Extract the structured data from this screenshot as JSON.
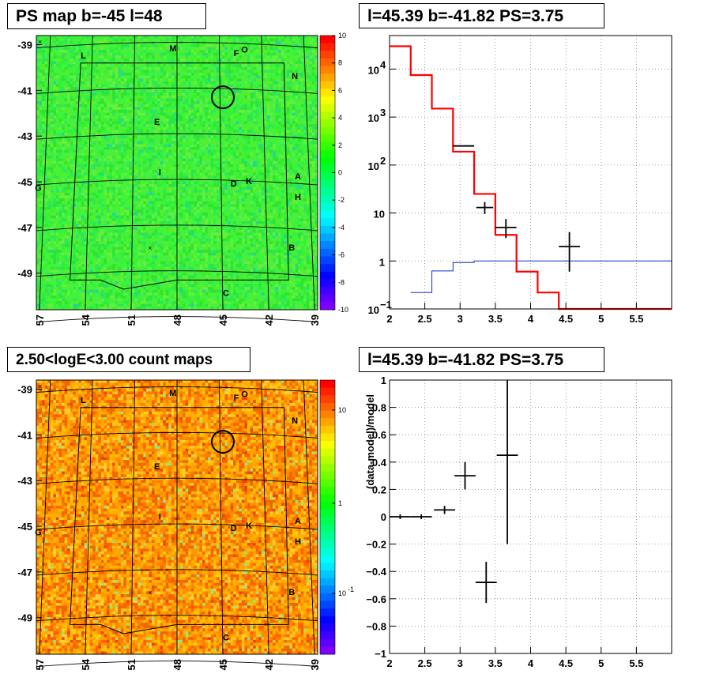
{
  "panels": {
    "tl_title": "PS map b=-45 l=48",
    "tr_title": "l=45.39 b=-41.82 PS=3.75",
    "bl_title": "2.50<logE<3.00 count maps",
    "br_title": "l=45.39 b=-41.82 PS=3.75"
  },
  "map_axes": {
    "x_ticks": [
      "57",
      "54",
      "51",
      "48",
      "45",
      "42",
      "39"
    ],
    "y_ticks": [
      "-39",
      "-41",
      "-43",
      "-45",
      "-47",
      "-49"
    ],
    "labels": [
      {
        "t": "M",
        "l": 48.5,
        "b": -39.3
      },
      {
        "t": "L",
        "l": 54.3,
        "b": -39.6
      },
      {
        "t": "F",
        "l": 44.3,
        "b": -39.5
      },
      {
        "t": "O",
        "l": 43.8,
        "b": -39.35
      },
      {
        "t": "N",
        "l": 40.5,
        "b": -40.5
      },
      {
        "t": "E",
        "l": 49.5,
        "b": -42.5
      },
      {
        "t": "I",
        "l": 49.2,
        "b": -44.7
      },
      {
        "t": "D",
        "l": 44.5,
        "b": -45.2
      },
      {
        "t": "K",
        "l": 43.5,
        "b": -45.1
      },
      {
        "t": "A",
        "l": 40.3,
        "b": -44.9
      },
      {
        "t": "G",
        "l": 57.3,
        "b": -45.4
      },
      {
        "t": "H",
        "l": 40.3,
        "b": -45.8
      },
      {
        "t": "B",
        "l": 40.7,
        "b": -48.0
      },
      {
        "t": "C",
        "l": 45.0,
        "b": -50.0
      }
    ]
  },
  "colorbar_tl": {
    "ticks": [
      "10",
      "8",
      "6",
      "4",
      "2",
      "0",
      "-2",
      "-4",
      "-6",
      "-8",
      "-10"
    ]
  },
  "colorbar_bl": {
    "ticks": [
      "10",
      "1",
      "10",
      "-1"
    ]
  },
  "chart_data": [
    {
      "type": "heatmap",
      "title": "PS map b=-45 l=48",
      "x_ticks": [
        57,
        54,
        51,
        48,
        45,
        42,
        39
      ],
      "y_ticks": [
        -39,
        -41,
        -43,
        -45,
        -47,
        -49
      ],
      "zlim": [
        -10,
        10
      ],
      "circle": {
        "l": 45.0,
        "b": -41.3
      }
    },
    {
      "type": "line",
      "title": "l=45.39 b=-41.82 PS=3.75",
      "log_y": true,
      "xlim": [
        2,
        6
      ],
      "ylim": [
        0.1,
        50000
      ],
      "x_ticks": [
        "2",
        "2.5",
        "3",
        "3.5",
        "4",
        "4.5",
        "5",
        "5.5"
      ],
      "y_ticks": [
        {
          "v": 0.1,
          "base": "10",
          "exp": "−1"
        },
        {
          "v": 1,
          "base": "1",
          "exp": ""
        },
        {
          "v": 10,
          "base": "10",
          "exp": ""
        },
        {
          "v": 100,
          "base": "10",
          "exp": "2"
        },
        {
          "v": 1000,
          "base": "10",
          "exp": "3"
        },
        {
          "v": 10000,
          "base": "10",
          "exp": "4"
        }
      ],
      "model_red": {
        "edges": [
          2,
          2.3,
          2.6,
          2.9,
          3.2,
          3.5,
          3.8,
          4.1,
          4.4,
          4.7,
          6
        ],
        "values": [
          30000,
          7500,
          1500,
          190,
          25,
          3.5,
          0.6,
          0.22,
          0.1,
          0.1
        ]
      },
      "model_blue": {
        "edges": [
          2.3,
          2.6,
          2.9,
          3.2,
          3.5,
          6
        ],
        "values": [
          0.22,
          0.62,
          0.93,
          1.0,
          1.0
        ]
      },
      "data_points": [
        {
          "x": 3.05,
          "y": 250,
          "xe": 0.15,
          "ylo": 250,
          "yhi": 250
        },
        {
          "x": 3.35,
          "y": 13,
          "xe": 0.12,
          "ylo": 9.5,
          "yhi": 17
        },
        {
          "x": 3.65,
          "y": 5,
          "xe": 0.15,
          "ylo": 3,
          "yhi": 7.5
        },
        {
          "x": 4.55,
          "y": 2,
          "xe": 0.15,
          "ylo": 0.6,
          "yhi": 4
        }
      ]
    },
    {
      "type": "heatmap",
      "title": "2.50<logE<3.00 count maps",
      "x_ticks": [
        57,
        54,
        51,
        48,
        45,
        42,
        39
      ],
      "y_ticks": [
        -39,
        -41,
        -43,
        -45,
        -47,
        -49
      ],
      "log_z": true,
      "circle": {
        "l": 45.0,
        "b": -41.3
      }
    },
    {
      "type": "scatter",
      "title": "l=45.39 b=-41.82 PS=3.75",
      "xlim": [
        2,
        6
      ],
      "ylim": [
        -1,
        1
      ],
      "ylabel": "(data-model)/model",
      "x_ticks": [
        "2",
        "2.5",
        "3",
        "3.5",
        "4",
        "4.5",
        "5",
        "5.5"
      ],
      "y_ticks": [
        "1",
        "0.8",
        "0.6",
        "0.4",
        "0.2",
        "0",
        "−0.2",
        "−0.4",
        "−0.6",
        "−0.8",
        "−1"
      ],
      "points": [
        {
          "x": 2.15,
          "y": 0.0,
          "xe": 0.15,
          "ye": 0.0
        },
        {
          "x": 2.45,
          "y": 0.0,
          "xe": 0.15,
          "ye": 0.0
        },
        {
          "x": 2.78,
          "y": 0.05,
          "xe": 0.15,
          "ye": 0.03
        },
        {
          "x": 3.07,
          "y": 0.3,
          "xe": 0.15,
          "ye": 0.1
        },
        {
          "x": 3.37,
          "y": -0.48,
          "xe": 0.15,
          "ye": 0.15
        },
        {
          "x": 3.67,
          "y": 0.45,
          "xe": 0.15,
          "ye": 0.65
        }
      ]
    }
  ]
}
